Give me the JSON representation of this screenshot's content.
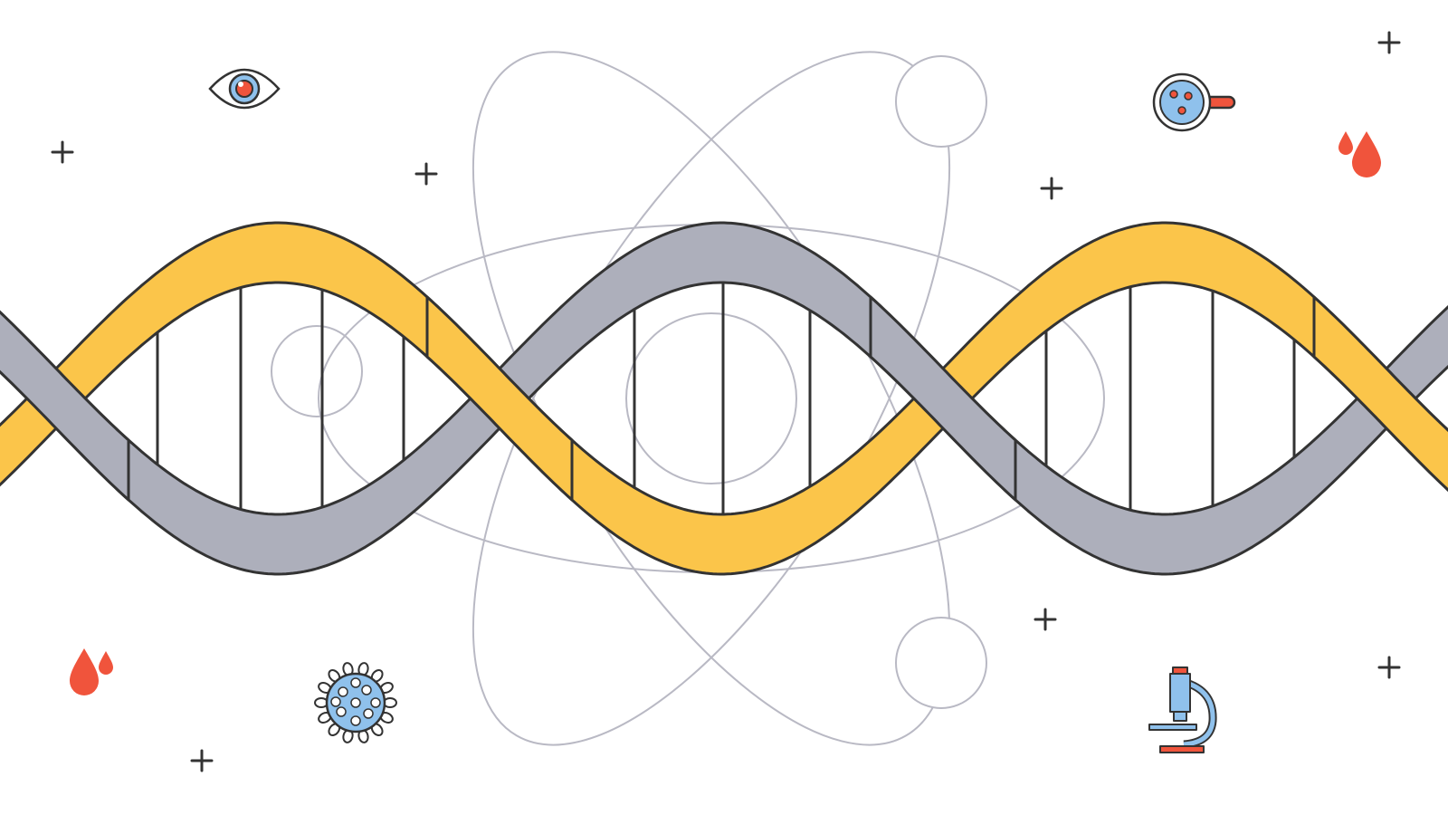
{
  "colors": {
    "background": "#ffffff",
    "outline": "#333333",
    "strand_yellow": "#FBC54A",
    "strand_gray": "#ADAFBB",
    "atom_orbit": "#B9B9C4",
    "accent_red": "#F0543C",
    "accent_blue": "#8FC1EC"
  },
  "illustration": {
    "subject": "dna-double-helix-with-atom",
    "icons": [
      "eye-icon",
      "petri-dish-icon",
      "blood-drops-icon",
      "virus-icon",
      "microscope-icon",
      "plus-sign-icon"
    ]
  }
}
